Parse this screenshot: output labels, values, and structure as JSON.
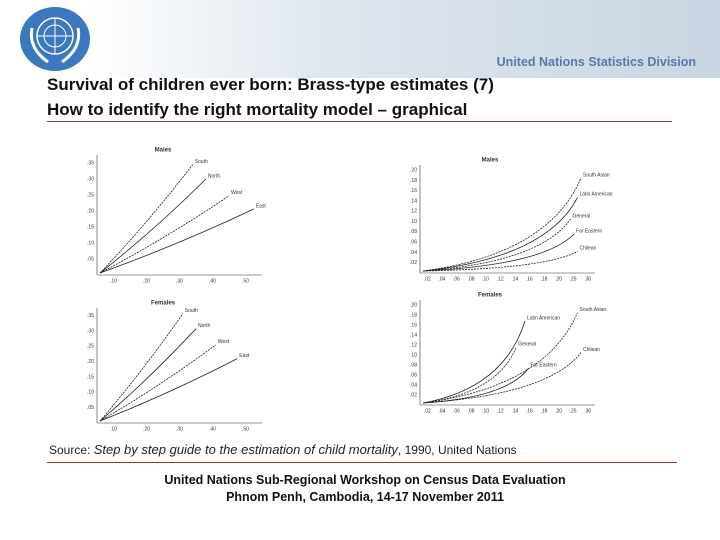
{
  "header": {
    "organization": "United Nations Statistics Division"
  },
  "title": {
    "line1": "Survival of children ever born: Brass-type estimates (7)",
    "line2": "How to identify the right mortality model – graphical"
  },
  "figures": [
    {
      "panel_title": "Males",
      "curves": [
        "South",
        "North",
        "West",
        "East"
      ],
      "yticks": [
        ".05",
        ".10",
        ".15",
        ".20",
        ".25",
        ".30",
        ".35"
      ],
      "xticks": [
        ".10",
        ".20",
        ".30",
        ".40",
        ".50"
      ]
    },
    {
      "panel_title": "Females",
      "curves": [
        "South",
        "North",
        "West",
        "East"
      ],
      "yticks": [
        ".05",
        ".10",
        ".15",
        ".20",
        ".25",
        ".30",
        ".35"
      ],
      "xticks": [
        ".10",
        ".20",
        ".30",
        ".40",
        ".50"
      ]
    },
    {
      "panel_title": "Males",
      "curves": [
        "South Asian",
        "Latin American",
        "General",
        "Far Eastern",
        "Chilean"
      ],
      "yticks": [
        ".02",
        ".04",
        ".06",
        ".08",
        ".10",
        ".12",
        ".14",
        ".16",
        ".18",
        ".20"
      ],
      "xticks": [
        ".02",
        ".04",
        ".06",
        ".08",
        ".10",
        ".12",
        ".14",
        ".16",
        ".18",
        ".20",
        ".25",
        ".30"
      ]
    },
    {
      "panel_title": "Females",
      "curves": [
        "South Asian",
        "Latin American",
        "General",
        "Far Eastern",
        "Chilean"
      ],
      "yticks": [
        ".02",
        ".04",
        ".06",
        ".08",
        ".10",
        ".12",
        ".14",
        ".16",
        ".18",
        ".20"
      ],
      "xticks": [
        ".02",
        ".04",
        ".06",
        ".08",
        ".10",
        ".12",
        ".14",
        ".16",
        ".18",
        ".20",
        ".25",
        ".30"
      ]
    }
  ],
  "source": {
    "prefix": "Source:",
    "work": "Step by step guide to the estimation of child mortality",
    "rest": ", 1990, United Nations"
  },
  "footer": {
    "line1": "United Nations Sub-Regional Workshop on Census Data Evaluation",
    "line2": "Phnom Penh, Cambodia, 14-17 November 2011"
  }
}
